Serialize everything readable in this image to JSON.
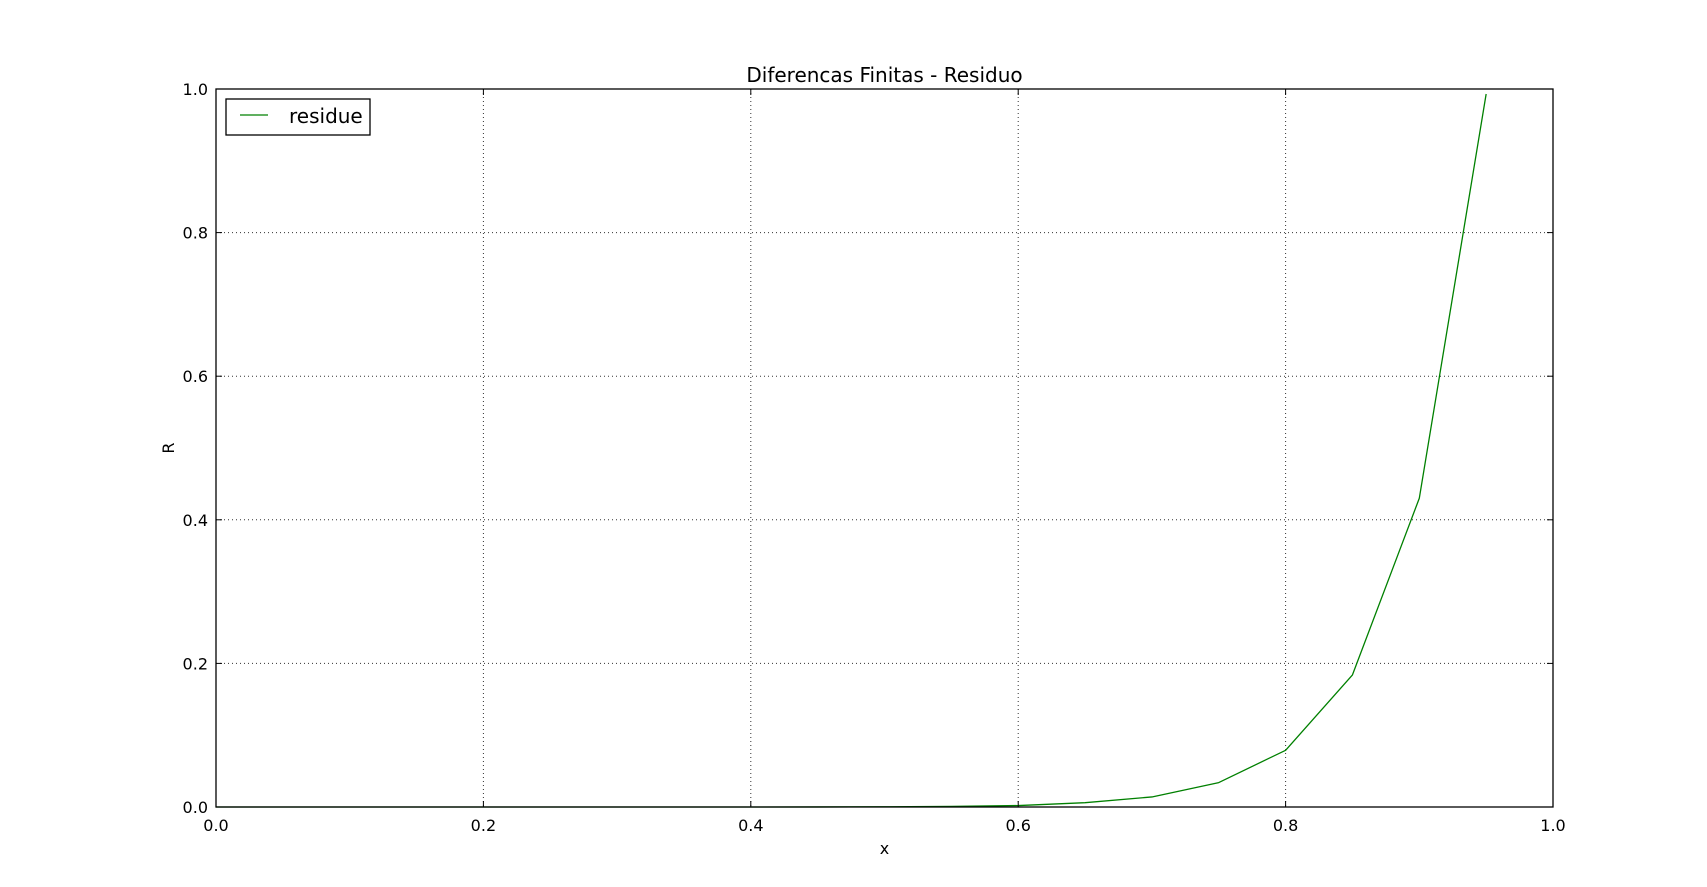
{
  "chart_data": {
    "type": "line",
    "title": "Diferencas Finitas - Residuo",
    "xlabel": "x",
    "ylabel": "R",
    "xlim": [
      0.0,
      1.0
    ],
    "ylim": [
      0.0,
      1.0
    ],
    "xticks": [
      "0.0",
      "0.2",
      "0.4",
      "0.6",
      "0.8",
      "1.0"
    ],
    "yticks": [
      "0.0",
      "0.2",
      "0.4",
      "0.6",
      "0.8",
      "1.0"
    ],
    "grid": true,
    "legend_position": "top-left",
    "series": [
      {
        "name": "residue",
        "color": "#008000",
        "x": [
          0.0,
          0.05,
          0.1,
          0.15,
          0.2,
          0.25,
          0.3,
          0.35,
          0.4,
          0.45,
          0.5,
          0.55,
          0.6,
          0.65,
          0.7,
          0.75,
          0.8,
          0.85,
          0.9,
          0.95
        ],
        "y": [
          0.0,
          0.0,
          0.0,
          0.0,
          0.0,
          0.0,
          0.0,
          0.0,
          0.0,
          0.0001,
          0.0003,
          0.0008,
          0.002,
          0.006,
          0.014,
          0.034,
          0.079,
          0.184,
          0.43,
          0.993
        ]
      }
    ]
  }
}
